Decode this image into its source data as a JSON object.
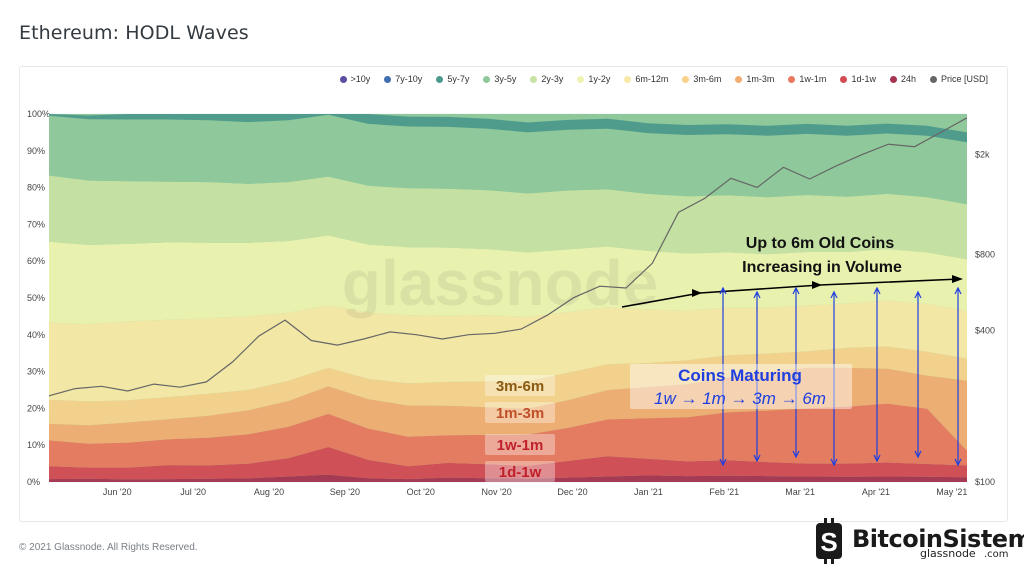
{
  "page": {
    "title": "Ethereum: HODL Waves",
    "footer": "© 2021 Glassnode. All Rights Reserved.",
    "brand": {
      "name": "BitcoinSistemi",
      "suffix": ".com",
      "overlay": "glassnode"
    }
  },
  "chart_data": {
    "type": "area",
    "stacked": true,
    "normalized": true,
    "watermark": "glassnode",
    "x_tick_labels": [
      "Jun '20",
      "Jul '20",
      "Aug '20",
      "Sep '20",
      "Oct '20",
      "Nov '20",
      "Dec '20",
      "Jan '21",
      "Feb '21",
      "Mar '21",
      "Apr '21",
      "May '21"
    ],
    "y_ticks": [
      {
        "value": 0,
        "label": "0%"
      },
      {
        "value": 10,
        "label": "10%"
      },
      {
        "value": 20,
        "label": "20%"
      },
      {
        "value": 30,
        "label": "30%"
      },
      {
        "value": 40,
        "label": "40%"
      },
      {
        "value": 50,
        "label": "50%"
      },
      {
        "value": 60,
        "label": "60%"
      },
      {
        "value": 70,
        "label": "70%"
      },
      {
        "value": 80,
        "label": "80%"
      },
      {
        "value": 90,
        "label": "90%"
      },
      {
        "value": 100,
        "label": "100%"
      }
    ],
    "ylim": [
      0,
      100
    ],
    "y2_scale": "log",
    "y2lim": [
      100,
      2900
    ],
    "y2_ticks": [
      {
        "value": 100,
        "label": "$100"
      },
      {
        "value": 400,
        "label": "$400"
      },
      {
        "value": 800,
        "label": "$800"
      },
      {
        "value": 2000,
        "label": "$2k"
      }
    ],
    "legend_position": "top-right",
    "legend": [
      {
        "label": ">10y",
        "color": "#5a4fa3"
      },
      {
        "label": "7y-10y",
        "color": "#3f6fb0"
      },
      {
        "label": "5y-7y",
        "color": "#4c9a8c"
      },
      {
        "label": "3y-5y",
        "color": "#8fc89a"
      },
      {
        "label": "2y-3y",
        "color": "#c7e3a3"
      },
      {
        "label": "1y-2y",
        "color": "#eef3b0"
      },
      {
        "label": "6m-12m",
        "color": "#f9e9a6"
      },
      {
        "label": "3m-6m",
        "color": "#f7d28a"
      },
      {
        "label": "1m-3m",
        "color": "#f2ad72"
      },
      {
        "label": "1w-1m",
        "color": "#e8785e"
      },
      {
        "label": "1d-1w",
        "color": "#d34a52"
      },
      {
        "label": "24h",
        "color": "#a63350"
      },
      {
        "label": "Price [USD]",
        "color": "#666666"
      }
    ],
    "x": [
      0,
      0.5,
      1,
      1.5,
      2,
      2.5,
      3,
      3.5,
      4,
      4.5,
      5,
      5.5,
      6,
      6.5,
      7,
      7.5,
      8,
      8.5,
      9,
      9.5,
      10,
      10.5,
      11,
      11.5
    ],
    "bands": [
      {
        "name": "24h",
        "color": "#a63350",
        "values": [
          0.8,
          0.9,
          0.7,
          0.8,
          0.9,
          1.0,
          1.5,
          2.0,
          1.0,
          0.8,
          1.2,
          1.0,
          0.9,
          1.2,
          1.5,
          1.8,
          1.6,
          1.7,
          1.6,
          1.5,
          1.4,
          1.5,
          1.4,
          1.3
        ]
      },
      {
        "name": "1d-1w",
        "color": "#d34a52",
        "values": [
          3.5,
          3.0,
          3.2,
          3.8,
          3.6,
          4.0,
          5.0,
          7.5,
          5.0,
          3.5,
          4.0,
          3.8,
          3.5,
          4.5,
          5.5,
          4.5,
          4.0,
          4.2,
          3.8,
          3.5,
          3.6,
          3.8,
          3.5,
          3.2
        ]
      },
      {
        "name": "1w-1m",
        "color": "#e8785e",
        "values": [
          7.0,
          6.5,
          6.8,
          7.0,
          7.5,
          8.0,
          8.5,
          9.0,
          8.5,
          8.0,
          7.5,
          8.0,
          8.5,
          9.0,
          10.0,
          11.0,
          12.0,
          13.0,
          14.0,
          15.0,
          15.5,
          16.0,
          15.0,
          4.0
        ]
      },
      {
        "name": "1m-3m",
        "color": "#f2ad72",
        "values": [
          4.5,
          5.0,
          5.5,
          5.5,
          6.0,
          6.5,
          7.0,
          7.5,
          8.0,
          8.5,
          8.0,
          7.5,
          7.0,
          7.5,
          8.0,
          8.5,
          9.0,
          9.5,
          10.5,
          11.0,
          10.5,
          9.5,
          9.0,
          19.0
        ]
      },
      {
        "name": "3m-6m",
        "color": "#f7d28a",
        "values": [
          6.5,
          6.5,
          6.0,
          6.0,
          6.0,
          5.5,
          5.5,
          5.0,
          5.5,
          6.0,
          6.5,
          7.0,
          7.5,
          7.5,
          7.0,
          6.5,
          6.5,
          6.0,
          5.0,
          4.5,
          5.5,
          6.0,
          6.5,
          6.0
        ]
      },
      {
        "name": "6m-12m",
        "color": "#f9e9a6",
        "values": [
          21.0,
          21.0,
          21.5,
          21.0,
          20.5,
          20.0,
          18.5,
          17.0,
          18.0,
          18.5,
          18.0,
          18.0,
          17.5,
          16.5,
          15.5,
          14.5,
          13.5,
          13.0,
          12.5,
          12.5,
          12.0,
          12.5,
          13.0,
          13.0
        ]
      },
      {
        "name": "1y-2y",
        "color": "#eef3b0",
        "values": [
          22.0,
          21.5,
          21.0,
          21.0,
          20.5,
          20.0,
          19.5,
          19.0,
          18.5,
          18.5,
          18.5,
          18.0,
          17.5,
          17.0,
          16.5,
          16.0,
          15.5,
          15.0,
          14.5,
          14.5,
          14.0,
          14.0,
          14.0,
          14.0
        ]
      },
      {
        "name": "2y-3y",
        "color": "#c7e3a3",
        "values": [
          18.0,
          17.5,
          17.0,
          16.5,
          16.5,
          16.0,
          16.0,
          16.0,
          16.0,
          16.0,
          16.0,
          16.0,
          16.0,
          16.0,
          15.5,
          15.5,
          15.5,
          15.5,
          15.5,
          15.5,
          15.0,
          15.0,
          15.0,
          15.0
        ]
      },
      {
        "name": "3y-5y",
        "color": "#8fc89a",
        "values": [
          16.2,
          16.7,
          16.8,
          16.9,
          16.8,
          16.8,
          16.8,
          16.8,
          16.8,
          16.8,
          16.8,
          16.7,
          16.6,
          16.5,
          16.5,
          16.5,
          16.7,
          16.6,
          16.7,
          16.6,
          16.6,
          16.4,
          16.7,
          16.8
        ]
      },
      {
        "name": "5y-7y",
        "color": "#4c9a8c",
        "values": [
          0.5,
          1.0,
          1.5,
          2.5,
          2.7,
          2.7,
          2.7,
          2.7,
          2.7,
          2.7,
          2.7,
          2.7,
          2.7,
          2.7,
          2.7,
          2.7,
          2.7,
          2.7,
          2.7,
          2.7,
          2.7,
          2.7,
          2.7,
          2.7
        ]
      }
    ],
    "price_series": {
      "name": "Price [USD]",
      "color": "#666666",
      "values": [
        220,
        235,
        240,
        230,
        245,
        238,
        250,
        300,
        380,
        440,
        365,
        350,
        370,
        395,
        385,
        370,
        385,
        390,
        405,
        460,
        540,
        600,
        590,
        740,
        1180,
        1340,
        1610,
        1480,
        1780,
        1600,
        1800,
        2000,
        2200,
        2150,
        2450,
        2800
      ]
    },
    "annotations": [
      {
        "text": "Up to 6m Old Coins",
        "color": "#111111"
      },
      {
        "text": "Increasing in Volume",
        "color": "#111111"
      },
      {
        "text": "Coins Maturing",
        "color": "#1f3fe0"
      },
      {
        "text": "1w → 1m → 3m → 6m",
        "color": "#1f3fe0"
      },
      {
        "text": "3m-6m",
        "color": "#8a5a12"
      },
      {
        "text": "1m-3m",
        "color": "#c0502a"
      },
      {
        "text": "1w-1m",
        "color": "#c0202a"
      },
      {
        "text": "1d-1w",
        "color": "#c0202a"
      }
    ]
  }
}
